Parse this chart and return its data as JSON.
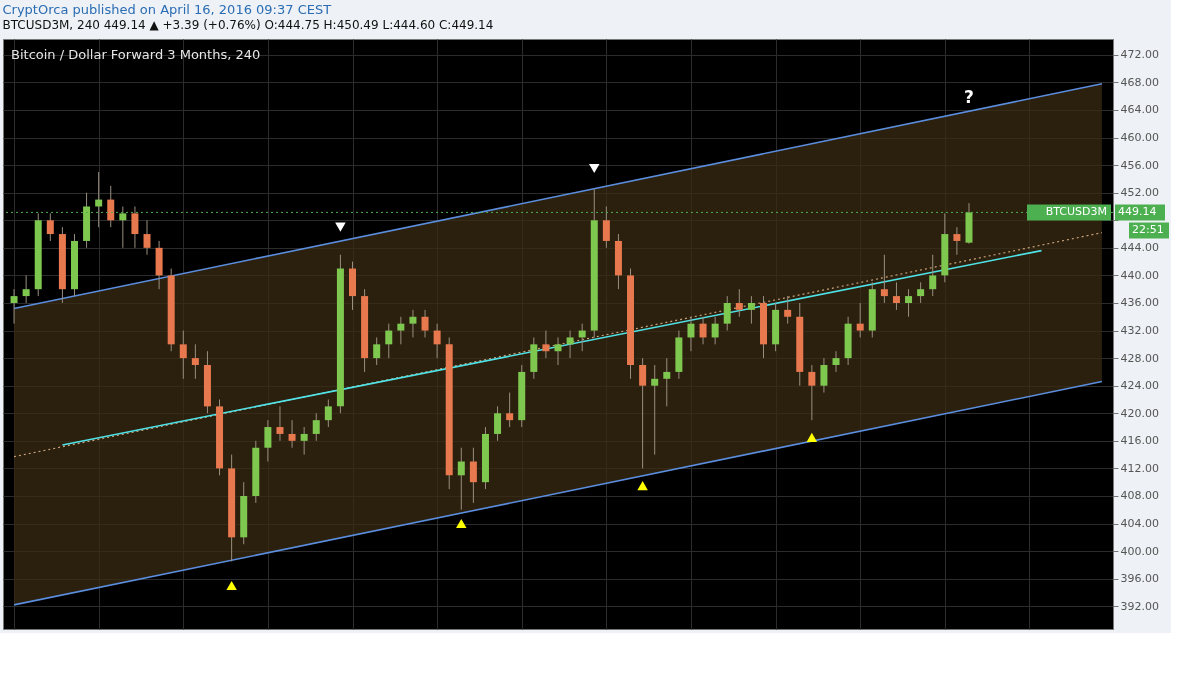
{
  "chart_data": {
    "type": "candlestick",
    "title": "Bitcoin / Dollar Forward 3 Months, 240",
    "subtitle": "CryptOrca published on April 16, 2016 09:37 CEST",
    "annotations": [
      "BTCUSD3M, 240  449.14 ▲ +3.39 (+0.76%)  O:444.75  H:450.49  L:444.60  C:449.14",
      "449.14",
      "22:51",
      "?"
    ],
    "categories": [
      null,
      null,
      null,
      null,
      null,
      null,
      null,
      null,
      null,
      null,
      null,
      null,
      null,
      null,
      null,
      null,
      null,
      null,
      null,
      null,
      null,
      null,
      null,
      null,
      null,
      null,
      null,
      null,
      null,
      null,
      null,
      null,
      null,
      null,
      null,
      null,
      null,
      null,
      null,
      null,
      null,
      null,
      null,
      null,
      null,
      null,
      null,
      null,
      null,
      null,
      null,
      null,
      null,
      null,
      null,
      null,
      null,
      null,
      null,
      null,
      null,
      null,
      null,
      null,
      null,
      null,
      null,
      null,
      null,
      null,
      null,
      null,
      null,
      null,
      null,
      null,
      null,
      null,
      null,
      null,
      null,
      null,
      null,
      null,
      null,
      null,
      null,
      null,
      null,
      null,
      null
    ],
    "ohlc": [
      [
        436,
        438,
        433,
        437
      ],
      [
        437,
        440,
        436,
        438
      ],
      [
        438,
        449,
        437,
        448
      ],
      [
        448,
        449,
        445,
        446
      ],
      [
        446,
        447,
        436,
        438
      ],
      [
        438,
        446,
        437,
        445
      ],
      [
        445,
        452,
        444,
        450
      ],
      [
        450,
        455,
        447,
        451
      ],
      [
        451,
        453,
        447,
        448
      ],
      [
        448,
        450,
        444,
        449
      ],
      [
        449,
        450,
        444,
        446
      ],
      [
        446,
        448,
        443,
        444
      ],
      [
        444,
        445,
        438,
        440
      ],
      [
        440,
        441,
        429,
        430
      ],
      [
        430,
        432,
        425,
        428
      ],
      [
        428,
        430,
        425,
        427
      ],
      [
        427,
        429,
        420,
        421
      ],
      [
        421,
        422,
        411,
        412
      ],
      [
        412,
        414,
        398.5,
        402
      ],
      [
        402,
        410,
        401,
        408
      ],
      [
        408,
        416,
        407,
        415
      ],
      [
        415,
        419,
        413,
        418
      ],
      [
        418,
        421,
        416,
        417
      ],
      [
        417,
        419,
        415,
        416
      ],
      [
        416,
        418,
        414,
        417
      ],
      [
        417,
        420,
        416,
        419
      ],
      [
        419,
        422,
        418,
        421
      ],
      [
        421,
        443,
        420,
        441
      ],
      [
        441,
        442,
        435,
        437
      ],
      [
        437,
        438,
        426,
        428
      ],
      [
        428,
        431,
        427,
        430
      ],
      [
        430,
        433,
        428,
        432
      ],
      [
        432,
        434,
        430,
        433
      ],
      [
        433,
        435,
        431,
        434
      ],
      [
        434,
        435,
        431,
        432
      ],
      [
        432,
        433,
        428,
        430
      ],
      [
        430,
        431,
        409,
        411
      ],
      [
        411,
        415,
        406,
        413
      ],
      [
        413,
        415,
        407,
        410
      ],
      [
        410,
        418,
        409,
        417
      ],
      [
        417,
        421,
        416,
        420
      ],
      [
        420,
        423,
        418,
        419
      ],
      [
        419,
        427,
        418,
        426
      ],
      [
        426,
        431,
        425,
        430
      ],
      [
        430,
        432,
        428,
        429
      ],
      [
        429,
        431,
        427,
        430
      ],
      [
        430,
        432,
        428,
        431
      ],
      [
        431,
        433,
        429,
        432
      ],
      [
        432,
        452.5,
        431,
        448
      ],
      [
        448,
        450,
        444,
        445
      ],
      [
        445,
        446,
        438,
        440
      ],
      [
        440,
        441,
        425,
        427
      ],
      [
        427,
        428,
        412,
        424
      ],
      [
        424,
        427,
        414,
        425
      ],
      [
        425,
        428,
        421,
        426
      ],
      [
        426,
        432,
        425,
        431
      ],
      [
        431,
        434,
        429,
        433
      ],
      [
        433,
        434,
        430,
        431
      ],
      [
        431,
        434,
        430,
        433
      ],
      [
        433,
        437,
        432,
        436
      ],
      [
        436,
        438,
        434,
        435
      ],
      [
        435,
        437,
        433,
        436
      ],
      [
        436,
        437,
        428,
        430
      ],
      [
        430,
        436,
        429,
        435
      ],
      [
        435,
        437,
        433,
        434
      ],
      [
        434,
        436,
        424,
        426
      ],
      [
        426,
        427,
        419,
        424
      ],
      [
        424,
        428,
        423,
        427
      ],
      [
        427,
        429,
        426,
        428
      ],
      [
        428,
        434,
        427,
        433
      ],
      [
        433,
        436,
        431,
        432
      ],
      [
        432,
        439,
        431,
        438
      ],
      [
        438,
        443,
        436,
        437
      ],
      [
        437,
        439,
        435,
        436
      ],
      [
        436,
        438,
        434,
        437
      ],
      [
        437,
        439,
        436,
        438
      ],
      [
        438,
        443,
        437,
        440
      ],
      [
        440,
        449,
        439,
        446
      ],
      [
        446,
        447,
        443,
        445
      ],
      [
        444.75,
        450.49,
        444.6,
        449.14
      ],
      null,
      null,
      null,
      null,
      null,
      null,
      null,
      null,
      null,
      null,
      null
    ],
    "series": [
      {
        "type": "line",
        "color": "#c9a27a",
        "line_style": "dotted",
        "values": [
          413.7,
          null,
          null,
          null,
          null,
          null,
          null,
          null,
          null,
          null,
          null,
          null,
          null,
          null,
          null,
          null,
          null,
          null,
          null,
          null,
          null,
          null,
          null,
          null,
          null,
          null,
          null,
          null,
          null,
          null,
          null,
          null,
          null,
          null,
          null,
          null,
          null,
          null,
          null,
          null,
          null,
          null,
          null,
          null,
          null,
          null,
          null,
          null,
          null,
          null,
          null,
          null,
          null,
          null,
          null,
          null,
          null,
          null,
          null,
          null,
          null,
          null,
          null,
          null,
          null,
          null,
          null,
          null,
          null,
          null,
          null,
          null,
          null,
          null,
          null,
          null,
          null,
          null,
          null,
          null,
          null,
          null,
          null,
          null,
          null,
          null,
          null,
          null,
          null,
          null,
          446.2
        ],
        "lower": [
          392.2,
          null,
          null,
          null,
          null,
          null,
          null,
          null,
          null,
          null,
          null,
          null,
          null,
          null,
          null,
          null,
          null,
          null,
          null,
          null,
          null,
          null,
          null,
          null,
          null,
          null,
          null,
          null,
          null,
          null,
          null,
          null,
          null,
          null,
          null,
          null,
          null,
          null,
          null,
          null,
          null,
          null,
          null,
          null,
          null,
          null,
          null,
          null,
          null,
          null,
          null,
          null,
          null,
          null,
          null,
          null,
          null,
          null,
          null,
          null,
          null,
          null,
          null,
          null,
          null,
          null,
          null,
          null,
          null,
          null,
          null,
          null,
          null,
          null,
          null,
          null,
          null,
          null,
          null,
          null,
          null,
          null,
          null,
          null,
          null,
          null,
          null,
          null,
          null,
          null,
          424.6
        ],
        "upper": [
          435.2,
          null,
          null,
          null,
          null,
          null,
          null,
          null,
          null,
          null,
          null,
          null,
          null,
          null,
          null,
          null,
          null,
          null,
          null,
          null,
          null,
          null,
          null,
          null,
          null,
          null,
          null,
          null,
          null,
          null,
          null,
          null,
          null,
          null,
          null,
          null,
          null,
          null,
          null,
          null,
          null,
          null,
          null,
          null,
          null,
          null,
          null,
          null,
          null,
          null,
          null,
          null,
          null,
          null,
          null,
          null,
          null,
          null,
          null,
          null,
          null,
          null,
          null,
          null,
          null,
          null,
          null,
          null,
          null,
          null,
          null,
          null,
          null,
          null,
          null,
          null,
          null,
          null,
          null,
          null,
          null,
          null,
          null,
          null,
          null,
          null,
          null,
          null,
          null,
          null,
          467.8
        ]
      },
      {
        "type": "line",
        "color": "#5b8ede",
        "values": [
          435.2,
          null,
          null,
          null,
          null,
          null,
          null,
          null,
          null,
          null,
          null,
          null,
          null,
          null,
          null,
          null,
          null,
          null,
          null,
          null,
          null,
          null,
          null,
          null,
          null,
          null,
          null,
          null,
          null,
          null,
          null,
          null,
          null,
          null,
          null,
          null,
          null,
          null,
          null,
          null,
          null,
          null,
          null,
          null,
          null,
          null,
          null,
          null,
          null,
          null,
          null,
          null,
          null,
          null,
          null,
          null,
          null,
          null,
          null,
          null,
          null,
          null,
          null,
          null,
          null,
          null,
          null,
          null,
          null,
          null,
          null,
          null,
          null,
          null,
          null,
          null,
          null,
          null,
          null,
          null,
          null,
          null,
          null,
          null,
          null,
          null,
          null,
          null,
          null,
          null,
          467.8
        ]
      },
      {
        "type": "line",
        "color": "#5b8ede",
        "values": [
          392.2,
          null,
          null,
          null,
          null,
          null,
          null,
          null,
          null,
          null,
          null,
          null,
          null,
          null,
          null,
          null,
          null,
          null,
          null,
          null,
          null,
          null,
          null,
          null,
          null,
          null,
          null,
          null,
          null,
          null,
          null,
          null,
          null,
          null,
          null,
          null,
          null,
          null,
          null,
          null,
          null,
          null,
          null,
          null,
          null,
          null,
          null,
          null,
          null,
          null,
          null,
          null,
          null,
          null,
          null,
          null,
          null,
          null,
          null,
          null,
          null,
          null,
          null,
          null,
          null,
          null,
          null,
          null,
          null,
          null,
          null,
          null,
          null,
          null,
          null,
          null,
          null,
          null,
          null,
          null,
          null,
          null,
          null,
          null,
          null,
          null,
          null,
          null,
          null,
          null,
          424.6
        ]
      },
      {
        "type": "line",
        "color": "#4fe3e8",
        "values": [
          null,
          null,
          null,
          null,
          415.4,
          null,
          null,
          null,
          null,
          null,
          null,
          null,
          null,
          null,
          null,
          null,
          null,
          null,
          null,
          null,
          null,
          null,
          null,
          null,
          null,
          null,
          null,
          null,
          null,
          null,
          null,
          null,
          null,
          null,
          null,
          null,
          null,
          null,
          null,
          null,
          null,
          null,
          null,
          null,
          null,
          null,
          null,
          null,
          null,
          null,
          null,
          null,
          null,
          null,
          null,
          null,
          null,
          null,
          null,
          null,
          null,
          null,
          null,
          null,
          null,
          null,
          null,
          null,
          null,
          null,
          null,
          null,
          null,
          null,
          null,
          null,
          null,
          null,
          null,
          null,
          null,
          null,
          null,
          null,
          null,
          443.6,
          null,
          null,
          null,
          null,
          null
        ]
      },
      {
        "type": "scatter",
        "color": "#ffffff",
        "marker": "triangle-down",
        "values": [
          null,
          null,
          null,
          null,
          null,
          null,
          null,
          null,
          null,
          null,
          null,
          null,
          null,
          null,
          null,
          null,
          null,
          null,
          null,
          null,
          null,
          null,
          null,
          null,
          null,
          null,
          null,
          447,
          null,
          null,
          null,
          null,
          null,
          null,
          null,
          null,
          null,
          null,
          null,
          null,
          null,
          null,
          null,
          null,
          null,
          null,
          null,
          null,
          455.5,
          null,
          null,
          null,
          null,
          null,
          null,
          null,
          null,
          null,
          null,
          null,
          null,
          null,
          null,
          null,
          null,
          null,
          null,
          null,
          null,
          null,
          null,
          null,
          null,
          null,
          null,
          null,
          null,
          null,
          null,
          null,
          null,
          null,
          null,
          null,
          null,
          null,
          null,
          null,
          null,
          null,
          null
        ]
      },
      {
        "type": "scatter",
        "color": "#ffff00",
        "marker": "triangle-up",
        "values": [
          null,
          null,
          null,
          null,
          null,
          null,
          null,
          null,
          null,
          null,
          null,
          null,
          null,
          null,
          null,
          null,
          null,
          null,
          395,
          null,
          null,
          null,
          null,
          null,
          null,
          null,
          null,
          null,
          null,
          null,
          null,
          null,
          null,
          null,
          null,
          null,
          null,
          404,
          null,
          null,
          null,
          null,
          null,
          null,
          null,
          null,
          null,
          null,
          null,
          null,
          null,
          null,
          409.5,
          null,
          null,
          null,
          null,
          null,
          null,
          null,
          null,
          null,
          null,
          null,
          null,
          null,
          416.5,
          null,
          null,
          null,
          null,
          null,
          null,
          null,
          null,
          null,
          null,
          null,
          null,
          null,
          null,
          null,
          null,
          null,
          null,
          null,
          null,
          null,
          null,
          null,
          null
        ]
      }
    ],
    "ref_lines": [
      {
        "axis": "y",
        "value": 449.14,
        "label": "BTCUSD3M",
        "color": "#4caf50",
        "line_style": "dotted"
      }
    ],
    "ylim": [
      388.7,
      474.3
    ],
    "yticks": [
      {
        "value": 392,
        "label": "392.00"
      },
      {
        "value": 396,
        "label": "396.00"
      },
      {
        "value": 400,
        "label": "400.00"
      },
      {
        "value": 404,
        "label": "404.00"
      },
      {
        "value": 408,
        "label": "408.00"
      },
      {
        "value": 412,
        "label": "412.00"
      },
      {
        "value": 416,
        "label": "416.00"
      },
      {
        "value": 420,
        "label": "420.00"
      },
      {
        "value": 424,
        "label": "424.00"
      },
      {
        "value": 428,
        "label": "428.00"
      },
      {
        "value": 432,
        "label": "432.00"
      },
      {
        "value": 436,
        "label": "436.00"
      },
      {
        "value": 440,
        "label": "440.00"
      },
      {
        "value": 444,
        "label": "444.00"
      },
      {
        "value": 448,
        "label": null
      },
      {
        "value": 452,
        "label": "452.00"
      },
      {
        "value": 456,
        "label": "456.00"
      },
      {
        "value": 460,
        "label": "460.00"
      },
      {
        "value": 464,
        "label": "464.00"
      },
      {
        "value": 468,
        "label": "468.00"
      },
      {
        "value": 472,
        "label": "472.00"
      }
    ],
    "tick_labels": "y",
    "grid": true
  }
}
